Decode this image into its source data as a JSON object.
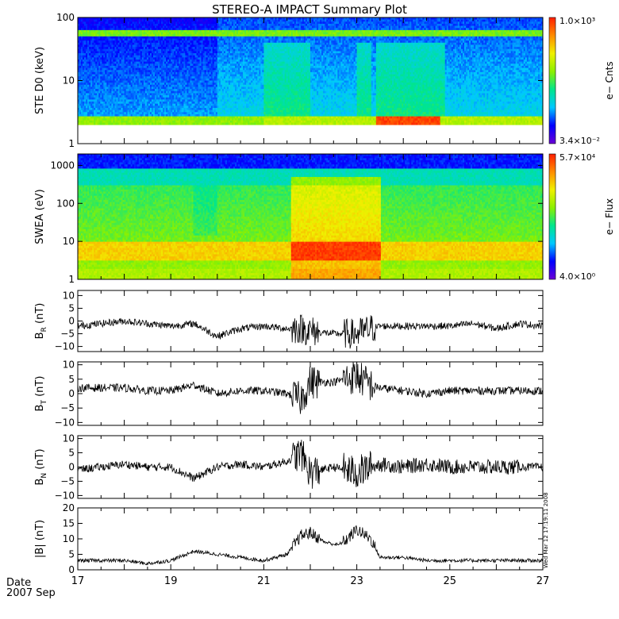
{
  "title": "STEREO-A IMPACT Summary Plot",
  "footer": {
    "date_label": "Date",
    "year_month": "2007 Sep"
  },
  "stamp": "Wed Mar 12 17:19:11 2008",
  "chart_data": [
    {
      "type": "heatmap",
      "ylabel": "STE D0 (keV)",
      "y_scale": "log",
      "ylim": [
        1,
        100
      ],
      "yticks": [
        1,
        10,
        100
      ],
      "ytick_labels": [
        "1",
        "10",
        "100"
      ],
      "xlim": [
        17,
        27
      ],
      "colorbar": {
        "label": "e− Cnts",
        "max": "1.0×10³",
        "min": "3.4×10⁻²",
        "colors": [
          "#6b00d6",
          "#0000ff",
          "#00c8ff",
          "#00e68c",
          "#8cf000",
          "#f0f000",
          "#ff8c00",
          "#ff1e00"
        ]
      },
      "features": {
        "floor_keV": 2.0,
        "lowband_keV": [
          2.0,
          2.8
        ],
        "contamination_band_keV": [
          50,
          62
        ],
        "enhancement_days": [
          [
            21.0,
            22.0
          ],
          [
            23.0,
            23.3
          ],
          [
            23.4,
            24.9
          ]
        ],
        "peak_counts_near_2keV_days": [
          23.4,
          24.8
        ]
      }
    },
    {
      "type": "heatmap",
      "ylabel": "SWEA (eV)",
      "y_scale": "log",
      "ylim": [
        1,
        2000
      ],
      "yticks": [
        1,
        10,
        100,
        1000
      ],
      "ytick_labels": [
        "1",
        "10",
        "100",
        "1000"
      ],
      "xlim": [
        17,
        27
      ],
      "colorbar": {
        "label": "e− Flux",
        "max": "5.7×10⁴",
        "min": "4.0×10⁰",
        "colors": [
          "#6b00d6",
          "#0000ff",
          "#00c8ff",
          "#00e68c",
          "#8cf000",
          "#f0f000",
          "#ff8c00",
          "#ff1e00"
        ]
      },
      "features": {
        "high_flux_band_eV": [
          3,
          10
        ],
        "enhanced_flux_days": [
          21.6,
          23.5
        ],
        "low_flux_above_eV": 800
      }
    },
    {
      "type": "line",
      "ylabel": "B",
      "ylabel_sub": "R",
      "ylabel_unit": " (nT)",
      "ylim": [
        -12,
        12
      ],
      "yticks": [
        -10,
        -5,
        0,
        5,
        10
      ],
      "ytick_labels": [
        "−10",
        "−5",
        "0",
        "5",
        "10"
      ],
      "xlim": [
        17,
        27
      ],
      "series": [
        {
          "x": [
            17,
            17.5,
            18,
            18.5,
            19,
            19.5,
            20,
            20.5,
            21,
            21.5,
            21.8,
            22,
            22.5,
            23,
            23.3,
            23.5,
            24,
            24.5,
            25,
            25.5,
            26,
            26.5,
            27
          ],
          "y": [
            -2,
            -1,
            0,
            -1,
            -2,
            -1,
            -6,
            -3,
            -2,
            -3,
            -3,
            -4,
            -5,
            -5,
            -3,
            -2,
            -2,
            -2,
            -2,
            -1,
            -3,
            -1,
            -2
          ]
        }
      ]
    },
    {
      "type": "line",
      "ylabel": "B",
      "ylabel_sub": "T",
      "ylabel_unit": " (nT)",
      "ylim": [
        -11,
        11
      ],
      "yticks": [
        -10,
        -5,
        0,
        5,
        10
      ],
      "ytick_labels": [
        "−10",
        "−5",
        "0",
        "5",
        "10"
      ],
      "xlim": [
        17,
        27
      ],
      "series": [
        {
          "x": [
            17,
            17.5,
            18,
            18.5,
            19,
            19.5,
            20,
            20.5,
            21,
            21.5,
            21.8,
            22,
            22.5,
            23,
            23.3,
            23.5,
            24,
            24.5,
            25,
            25.5,
            26,
            26.5,
            27
          ],
          "y": [
            2,
            2,
            2,
            1,
            1,
            3,
            0,
            1,
            1,
            0,
            -2,
            4,
            4,
            6,
            3,
            2,
            1,
            0,
            1,
            1,
            1,
            1,
            1
          ]
        }
      ]
    },
    {
      "type": "line",
      "ylabel": "B",
      "ylabel_sub": "N",
      "ylabel_unit": " (nT)",
      "ylim": [
        -11,
        11
      ],
      "yticks": [
        -10,
        -5,
        0,
        5,
        10
      ],
      "ytick_labels": [
        "−10",
        "−5",
        "0",
        "5",
        "10"
      ],
      "xlim": [
        17,
        27
      ],
      "series": [
        {
          "x": [
            17,
            17.5,
            18,
            18.5,
            19,
            19.5,
            20,
            20.5,
            21,
            21.5,
            21.8,
            22,
            22.5,
            23,
            23.3,
            23.5,
            24,
            24.5,
            25,
            25.5,
            26,
            26.5,
            27
          ],
          "y": [
            -1,
            0,
            1,
            0,
            0,
            -4,
            0,
            1,
            0,
            2,
            5,
            -2,
            0,
            -2,
            0,
            1,
            0,
            1,
            0,
            0,
            0,
            0,
            0
          ]
        }
      ]
    },
    {
      "type": "line",
      "ylabel": "|B| (nT)",
      "ylim": [
        0,
        20
      ],
      "yticks": [
        0,
        5,
        10,
        15,
        20
      ],
      "ytick_labels": [
        "0",
        "5",
        "10",
        "15",
        "20"
      ],
      "xlim": [
        17,
        27
      ],
      "xticks": [
        17,
        19,
        21,
        23,
        25,
        27
      ],
      "xtick_labels": [
        "17",
        "19",
        "21",
        "23",
        "25",
        "27"
      ],
      "series": [
        {
          "x": [
            17,
            17.5,
            18,
            18.5,
            19,
            19.5,
            20,
            20.5,
            21,
            21.5,
            21.8,
            22,
            22.3,
            22.6,
            22.8,
            23,
            23.3,
            23.5,
            24,
            24.5,
            25,
            25.5,
            26,
            26.5,
            27
          ],
          "y": [
            3,
            3,
            3,
            2,
            3,
            6,
            5,
            4,
            3,
            5,
            11,
            12,
            9,
            8,
            10,
            13,
            10,
            4,
            4,
            3,
            3,
            3,
            3,
            3,
            3
          ]
        }
      ]
    }
  ]
}
